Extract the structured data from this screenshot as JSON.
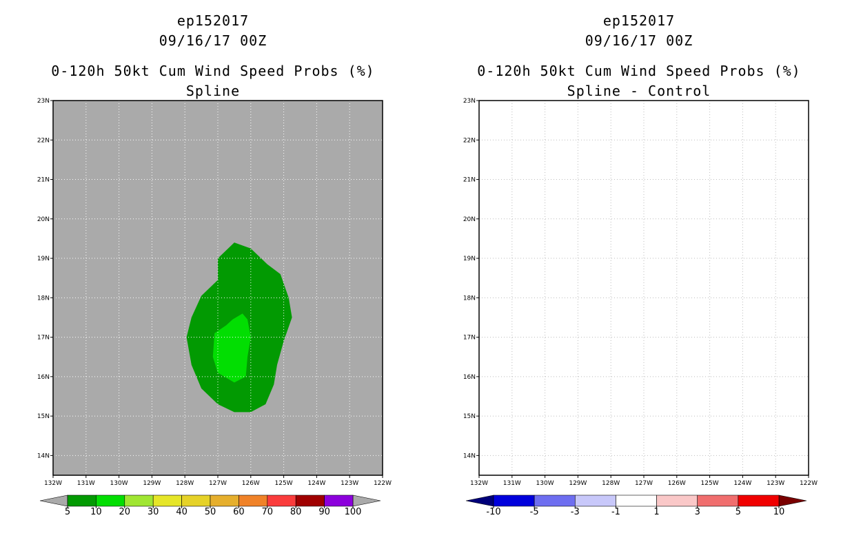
{
  "left": {
    "storm_id": "ep152017",
    "datetime": "09/16/17 00Z",
    "title": "0-120h 50kt Cum Wind Speed Probs (%)",
    "subtitle": "Spline"
  },
  "right": {
    "storm_id": "ep152017",
    "datetime": "09/16/17 00Z",
    "title": "0-120h 50kt Cum Wind Speed Probs (%)",
    "subtitle": "Spline - Control"
  },
  "chart_data": [
    {
      "type": "heatmap",
      "name": "spline",
      "title": "0-120h 50kt Cum Wind Speed Probs (%)",
      "subtitle": "Spline",
      "xlim": [
        -132,
        -122
      ],
      "ylim": [
        13.5,
        23
      ],
      "x_ticks": [
        -132,
        -131,
        -130,
        -129,
        -128,
        -127,
        -126,
        -125,
        -124,
        -123,
        -122
      ],
      "x_tick_labels": [
        "132W",
        "131W",
        "130W",
        "129W",
        "128W",
        "127W",
        "126W",
        "125W",
        "124W",
        "123W",
        "122W"
      ],
      "y_ticks": [
        14,
        15,
        16,
        17,
        18,
        19,
        20,
        21,
        22,
        23
      ],
      "y_tick_labels": [
        "14N",
        "15N",
        "16N",
        "17N",
        "18N",
        "19N",
        "20N",
        "21N",
        "22N",
        "23N"
      ],
      "background_color": "#aaaaaa",
      "contours": [
        {
          "level": "5-10",
          "color": "#029a02",
          "lonlat": [
            [
              -126.5,
              19.4
            ],
            [
              -126.0,
              19.25
            ],
            [
              -125.5,
              18.85
            ],
            [
              -125.1,
              18.6
            ],
            [
              -124.85,
              18.0
            ],
            [
              -124.75,
              17.5
            ],
            [
              -125.0,
              16.9
            ],
            [
              -125.2,
              16.3
            ],
            [
              -125.3,
              15.8
            ],
            [
              -125.55,
              15.3
            ],
            [
              -126.0,
              15.1
            ],
            [
              -126.5,
              15.1
            ],
            [
              -127.0,
              15.3
            ],
            [
              -127.5,
              15.7
            ],
            [
              -127.8,
              16.3
            ],
            [
              -127.95,
              17.0
            ],
            [
              -127.8,
              17.5
            ],
            [
              -127.5,
              18.05
            ],
            [
              -127.0,
              18.45
            ],
            [
              -127.0,
              19.0
            ]
          ]
        },
        {
          "level": "10-20",
          "color": "#02de02",
          "lonlat": [
            [
              -126.25,
              17.6
            ],
            [
              -126.1,
              17.45
            ],
            [
              -126.0,
              17.0
            ],
            [
              -126.1,
              16.5
            ],
            [
              -126.15,
              16.0
            ],
            [
              -126.5,
              15.85
            ],
            [
              -127.0,
              16.1
            ],
            [
              -127.15,
              16.5
            ],
            [
              -127.1,
              17.1
            ],
            [
              -126.75,
              17.3
            ],
            [
              -126.55,
              17.45
            ]
          ]
        }
      ],
      "colorbar": {
        "levels": [
          "5",
          "10",
          "20",
          "30",
          "40",
          "50",
          "60",
          "70",
          "80",
          "90",
          "100"
        ],
        "colors": [
          "#029a02",
          "#02de02",
          "#a0e632",
          "#e6e628",
          "#e6d228",
          "#e6af2d",
          "#f08228",
          "#fa3c3c",
          "#a00000",
          "#8c00dc"
        ],
        "under_color": "#aaaaaa",
        "over_color": "#aaaaaa"
      }
    },
    {
      "type": "heatmap",
      "name": "spline-minus-control",
      "title": "0-120h 50kt Cum Wind Speed Probs (%)",
      "subtitle": "Spline - Control",
      "xlim": [
        -132,
        -122
      ],
      "ylim": [
        13.5,
        23
      ],
      "x_ticks": [
        -132,
        -131,
        -130,
        -129,
        -128,
        -127,
        -126,
        -125,
        -124,
        -123,
        -122
      ],
      "x_tick_labels": [
        "132W",
        "131W",
        "130W",
        "129W",
        "128W",
        "127W",
        "126W",
        "125W",
        "124W",
        "123W",
        "122W"
      ],
      "y_ticks": [
        14,
        15,
        16,
        17,
        18,
        19,
        20,
        21,
        22,
        23
      ],
      "y_tick_labels": [
        "14N",
        "15N",
        "16N",
        "17N",
        "18N",
        "19N",
        "20N",
        "21N",
        "22N",
        "23N"
      ],
      "background_color": "#ffffff",
      "grid": true,
      "contours": [],
      "colorbar": {
        "levels": [
          "-10",
          "-5",
          "-3",
          "-1",
          "1",
          "3",
          "5",
          "10"
        ],
        "colors": [
          "#0000dc",
          "#6e6ef0",
          "#c8c8fa",
          "#ffffff",
          "#fac8c8",
          "#f06e6e",
          "#f00000"
        ],
        "under_color": "#00007a",
        "over_color": "#7a0000"
      }
    }
  ]
}
